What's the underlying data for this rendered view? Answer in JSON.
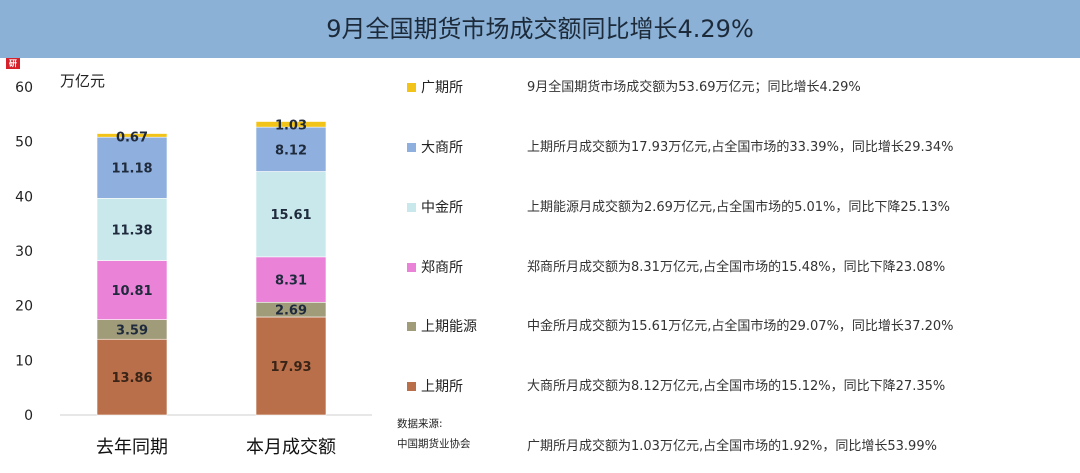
{
  "header": {
    "title": "9月全国期货市场成交额同比增长4.29%"
  },
  "logo_text": "研",
  "chart_data": {
    "type": "bar",
    "stacked": true,
    "ylabel": "万亿元",
    "ylim": [
      0,
      60
    ],
    "yticks": [
      "0",
      "10",
      "20",
      "30",
      "40",
      "50",
      "60"
    ],
    "categories": [
      "去年同期",
      "本月成交额"
    ],
    "series": [
      {
        "name": "上期所",
        "color": "#b9704a",
        "values": [
          13.86,
          17.93
        ],
        "labels": [
          "13.86",
          "17.93"
        ]
      },
      {
        "name": "上期能源",
        "color": "#a09c7a",
        "values": [
          3.59,
          2.69
        ],
        "labels": [
          "3.59",
          "2.69"
        ]
      },
      {
        "name": "郑商所",
        "color": "#ea82d8",
        "values": [
          10.81,
          8.31
        ],
        "labels": [
          "10.81",
          "8.31"
        ]
      },
      {
        "name": "中金所",
        "color": "#c9e8ec",
        "values": [
          11.38,
          15.61
        ],
        "labels": [
          "11.38",
          "15.61"
        ]
      },
      {
        "name": "大商所",
        "color": "#8fb0de",
        "values": [
          11.18,
          8.12
        ],
        "labels": [
          "11.18",
          "8.12"
        ]
      },
      {
        "name": "广期所",
        "color": "#f2c419",
        "values": [
          0.67,
          1.03
        ],
        "labels": [
          "0.67",
          "1.03"
        ]
      }
    ],
    "grid": false
  },
  "legend": [
    {
      "label": "广期所",
      "color": "#f2c419"
    },
    {
      "label": "大商所",
      "color": "#8fb0de"
    },
    {
      "label": "中金所",
      "color": "#c9e8ec"
    },
    {
      "label": "郑商所",
      "color": "#ea82d8"
    },
    {
      "label": "上期能源",
      "color": "#a09c7a"
    },
    {
      "label": "上期所",
      "color": "#b9704a"
    }
  ],
  "descriptions": [
    "9月全国期货市场成交额为53.69万亿元；同比增长4.29%",
    "上期所月成交额为17.93万亿元,占全国市场的33.39%，同比增长29.34%",
    "上期能源月成交额为2.69万亿元,占全国市场的5.01%，同比下降25.13%",
    "郑商所月成交额为8.31万亿元,占全国市场的15.48%，同比下降23.08%",
    "中金所月成交额为15.61万亿元,占全国市场的29.07%，同比增长37.20%",
    "大商所月成交额为8.12万亿元,占全国市场的15.12%，同比下降27.35%",
    "广期所月成交额为1.03万亿元,占全国市场的1.92%，同比增长53.99%"
  ],
  "source": {
    "label": "数据来源:",
    "org": "中国期货业协会"
  }
}
